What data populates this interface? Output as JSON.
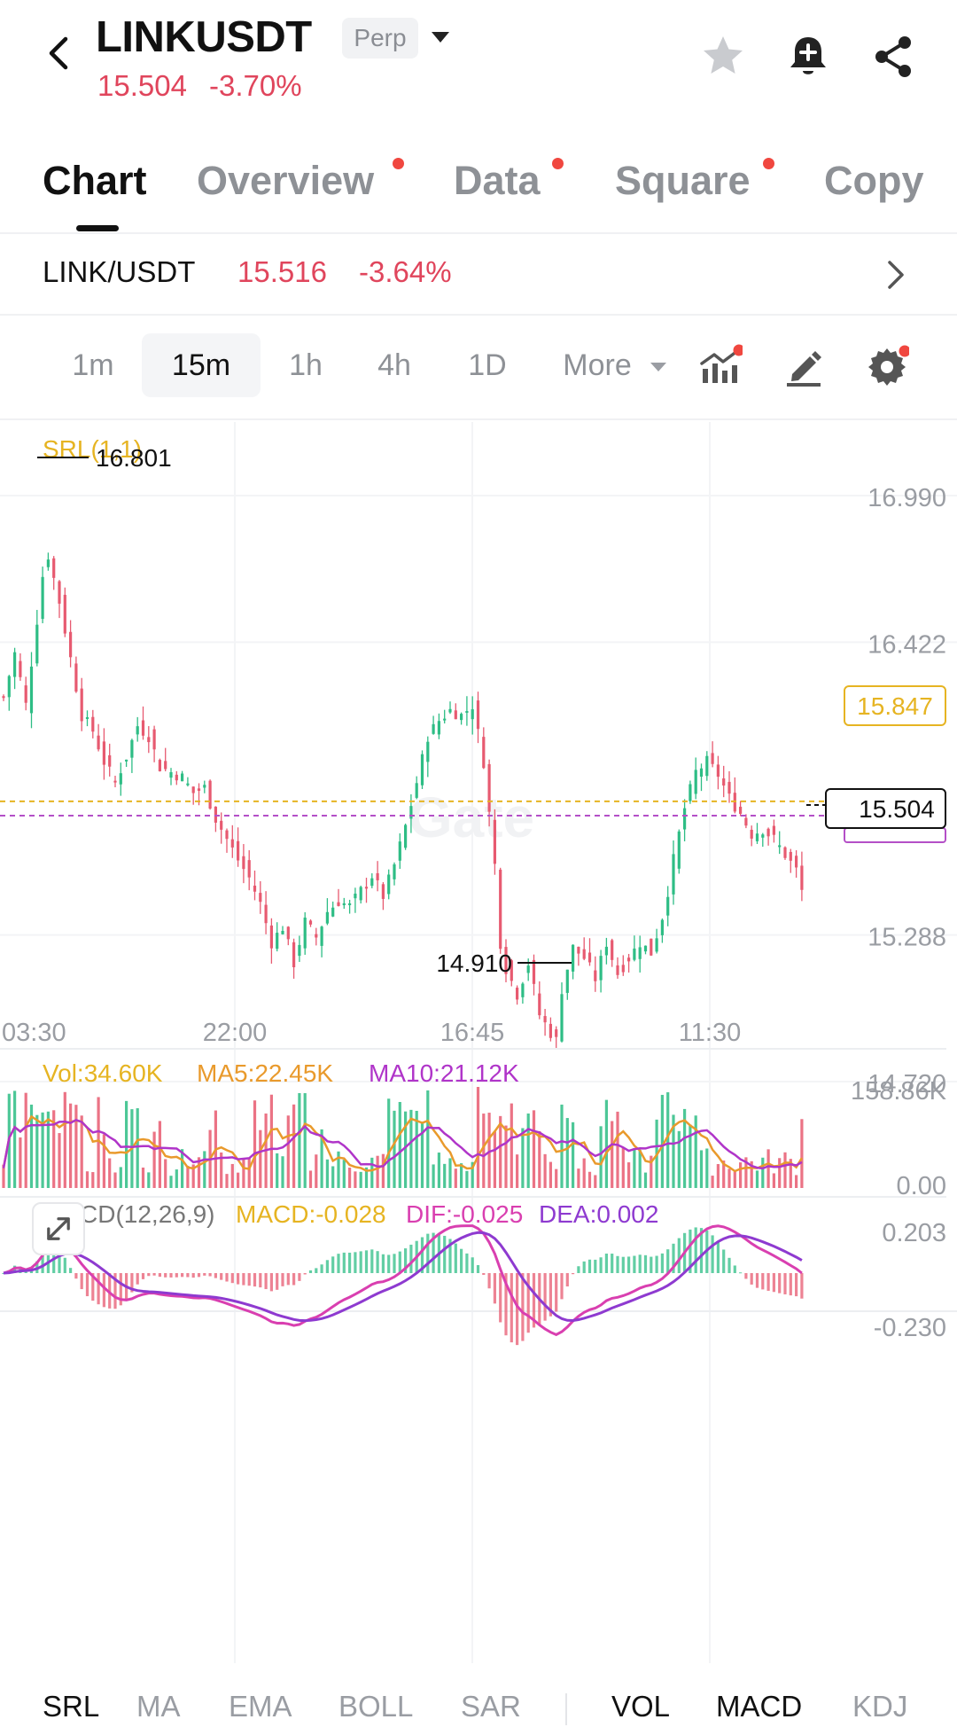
{
  "header": {
    "symbol": "LINKUSDT",
    "badge": "Perp",
    "price": "15.504",
    "change": "-3.70%",
    "icons": [
      "back-arrow-icon",
      "chevron-down-icon",
      "star-icon",
      "bell-plus-icon",
      "share-icon"
    ]
  },
  "tabs": [
    {
      "label": "Chart",
      "active": true,
      "dot": false
    },
    {
      "label": "Overview",
      "active": false,
      "dot": true
    },
    {
      "label": "Data",
      "active": false,
      "dot": true
    },
    {
      "label": "Square",
      "active": false,
      "dot": true
    },
    {
      "label": "Copy",
      "active": false,
      "dot": false
    }
  ],
  "pair_row": {
    "pair": "LINK/USDT",
    "price": "15.516",
    "change": "-3.64%"
  },
  "intervals": {
    "items": [
      "1m",
      "15m",
      "1h",
      "4h",
      "1D"
    ],
    "selected": "15m",
    "more_label": "More",
    "tools": [
      "indicators-icon",
      "draw-pencil-icon",
      "settings-gear-icon"
    ]
  },
  "main_chart": {
    "indicator_label": "SRL(1,1)",
    "watermark": "Gate",
    "price_ticks": [
      "16.990",
      "16.422",
      "15.288",
      "14.720"
    ],
    "price_tick_values": [
      16.99,
      16.422,
      15.288,
      14.72
    ],
    "time_labels": [
      "03:30",
      "22:00",
      "16:45",
      "11:30"
    ],
    "high_marker": "16.801",
    "low_marker": "14.910",
    "srl_level": "15.847",
    "last_price": "15.504"
  },
  "volume_panel": {
    "vol": "Vol:34.60K",
    "ma5": "MA5:22.45K",
    "ma10": "MA10:21.12K",
    "max_tick": "158.86K",
    "min_tick": "0.00"
  },
  "macd_panel": {
    "title": "MACD(12,26,9)",
    "macd": "MACD:-0.028",
    "dif": "DIF:-0.025",
    "dea": "DEA:0.002",
    "max_tick": "0.203",
    "min_tick": "-0.230"
  },
  "indicator_bar": {
    "main": [
      "SRL",
      "MA",
      "EMA",
      "BOLL",
      "SAR"
    ],
    "sub": [
      "VOL",
      "MACD",
      "KDJ"
    ],
    "active": [
      "SRL",
      "VOL",
      "MACD"
    ]
  },
  "colors": {
    "up": "#2ebd85",
    "down": "#e75a70",
    "srl": "#e6b422",
    "price_line": "#b44fc7",
    "ma5": "#e99a2c",
    "ma10": "#b035c9",
    "dif": "#d93fb0",
    "dea": "#8e3ad0",
    "red_text": "#e0455c"
  },
  "chart_data": {
    "type": "candlestick",
    "interval": "15m",
    "y_range": [
      14.72,
      16.99
    ],
    "close_path": [
      [
        0,
        16.25
      ],
      [
        2,
        16.42
      ],
      [
        4,
        16.22
      ],
      [
        6,
        16.55
      ],
      [
        7,
        16.72
      ],
      [
        8,
        16.8
      ],
      [
        10,
        16.62
      ],
      [
        12,
        16.4
      ],
      [
        14,
        16.18
      ],
      [
        16,
        16.12
      ],
      [
        18,
        16.0
      ],
      [
        20,
        15.92
      ],
      [
        22,
        16.02
      ],
      [
        24,
        16.14
      ],
      [
        26,
        16.1
      ],
      [
        28,
        15.98
      ],
      [
        30,
        15.96
      ],
      [
        32,
        15.94
      ],
      [
        34,
        15.88
      ],
      [
        36,
        15.9
      ],
      [
        38,
        15.78
      ],
      [
        40,
        15.7
      ],
      [
        42,
        15.62
      ],
      [
        44,
        15.55
      ],
      [
        46,
        15.45
      ],
      [
        48,
        15.3
      ],
      [
        50,
        15.36
      ],
      [
        52,
        15.22
      ],
      [
        54,
        15.38
      ],
      [
        56,
        15.32
      ],
      [
        58,
        15.42
      ],
      [
        60,
        15.46
      ],
      [
        62,
        15.44
      ],
      [
        64,
        15.5
      ],
      [
        66,
        15.56
      ],
      [
        68,
        15.48
      ],
      [
        70,
        15.6
      ],
      [
        72,
        15.75
      ],
      [
        74,
        15.92
      ],
      [
        76,
        16.1
      ],
      [
        78,
        16.16
      ],
      [
        80,
        16.2
      ],
      [
        82,
        16.18
      ],
      [
        84,
        16.22
      ],
      [
        86,
        16.0
      ],
      [
        88,
        15.6
      ],
      [
        89,
        15.3
      ],
      [
        90,
        15.2
      ],
      [
        92,
        15.1
      ],
      [
        94,
        15.22
      ],
      [
        96,
        15.02
      ],
      [
        98,
        14.95
      ],
      [
        99,
        14.92
      ],
      [
        100,
        15.12
      ],
      [
        102,
        15.28
      ],
      [
        104,
        15.24
      ],
      [
        106,
        15.16
      ],
      [
        108,
        15.3
      ],
      [
        110,
        15.18
      ],
      [
        112,
        15.24
      ],
      [
        114,
        15.3
      ],
      [
        116,
        15.26
      ],
      [
        118,
        15.4
      ],
      [
        119,
        15.5
      ],
      [
        120,
        15.62
      ],
      [
        122,
        15.82
      ],
      [
        124,
        15.96
      ],
      [
        126,
        16.0
      ],
      [
        128,
        15.95
      ],
      [
        130,
        15.86
      ],
      [
        132,
        15.8
      ],
      [
        134,
        15.72
      ],
      [
        136,
        15.74
      ],
      [
        138,
        15.7
      ],
      [
        140,
        15.64
      ],
      [
        142,
        15.58
      ],
      [
        143,
        15.5
      ]
    ]
  }
}
